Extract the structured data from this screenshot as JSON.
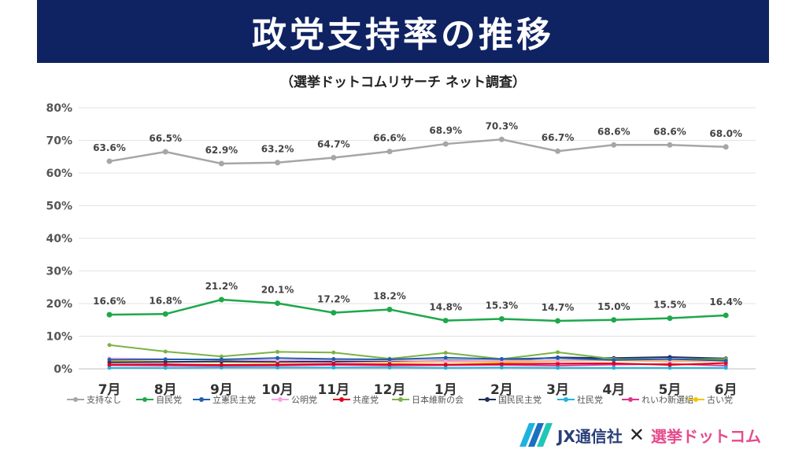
{
  "header": {
    "title": "政党支持率の推移"
  },
  "subtitle": "（選挙ドットコムリサーチ ネット調査）",
  "logo": {
    "jx": "JX通信社",
    "cross": "✕",
    "senkyo": "選挙ドットコム"
  },
  "chart_data": {
    "type": "line",
    "categories": [
      "7月",
      "8月",
      "9月",
      "10月",
      "11月",
      "12月",
      "1月",
      "2月",
      "3月",
      "4月",
      "5月",
      "6月"
    ],
    "ylim": [
      0,
      80
    ],
    "yticks": [
      "0%",
      "10%",
      "20%",
      "30%",
      "40%",
      "50%",
      "60%",
      "70%",
      "80%"
    ],
    "grid": true,
    "legend_position": "bottom",
    "series": [
      {
        "name": "支持なし",
        "color": "#a6a6a6",
        "values": [
          63.6,
          66.5,
          62.9,
          63.2,
          64.7,
          66.6,
          68.9,
          70.3,
          66.7,
          68.6,
          68.6,
          68.0
        ],
        "labels": [
          "63.6%",
          "66.5%",
          "62.9%",
          "63.2%",
          "64.7%",
          "66.6%",
          "68.9%",
          "70.3%",
          "66.7%",
          "68.6%",
          "68.6%",
          "68.0%"
        ]
      },
      {
        "name": "自民党",
        "color": "#1ea84b",
        "values": [
          16.6,
          16.8,
          21.2,
          20.1,
          17.2,
          18.2,
          14.8,
          15.3,
          14.7,
          15.0,
          15.5,
          16.4
        ],
        "labels": [
          "16.6%",
          "16.8%",
          "21.2%",
          "20.1%",
          "17.2%",
          "18.2%",
          "14.8%",
          "15.3%",
          "14.7%",
          "15.0%",
          "15.5%",
          "16.4%"
        ]
      },
      {
        "name": "立憲民主党",
        "color": "#1f5fad",
        "values": [
          2.8,
          2.9,
          2.9,
          3.3,
          3.0,
          2.9,
          3.4,
          3.0,
          3.3,
          2.7,
          3.0,
          2.5
        ]
      },
      {
        "name": "公明党",
        "color": "#f5a3e6",
        "values": [
          3.2,
          3.0,
          2.8,
          2.6,
          2.7,
          2.6,
          2.4,
          2.5,
          2.6,
          2.7,
          2.6,
          2.5
        ]
      },
      {
        "name": "共産党",
        "color": "#e0001a",
        "values": [
          1.3,
          1.4,
          1.2,
          1.3,
          1.5,
          1.4,
          1.3,
          1.5,
          1.6,
          1.7,
          1.2,
          1.8
        ]
      },
      {
        "name": "日本維新の会",
        "color": "#7cb246",
        "values": [
          7.3,
          5.3,
          3.8,
          5.2,
          5.0,
          3.1,
          4.9,
          3.0,
          5.1,
          3.0,
          2.9,
          3.0
        ]
      },
      {
        "name": "国民民主党",
        "color": "#1f2d5a",
        "values": [
          2.0,
          2.1,
          2.3,
          2.2,
          2.2,
          2.4,
          2.6,
          2.5,
          3.5,
          3.3,
          3.6,
          3.2
        ]
      },
      {
        "name": "社民党",
        "color": "#1fb2e0",
        "values": [
          0.3,
          0.3,
          0.4,
          0.4,
          0.4,
          0.4,
          0.3,
          0.4,
          0.3,
          0.3,
          0.3,
          0.3
        ]
      },
      {
        "name": "れいわ新選組",
        "color": "#e0338b",
        "values": [
          1.1,
          1.0,
          0.9,
          1.0,
          1.2,
          1.0,
          1.1,
          1.2,
          1.0,
          1.3,
          1.5,
          1.0
        ]
      },
      {
        "name": "古い党",
        "color": "#f5c400",
        "values": [
          2.3,
          2.2,
          2.1,
          2.0,
          2.3,
          2.1,
          2.2,
          2.0,
          2.4,
          2.6,
          2.3,
          2.4
        ]
      }
    ]
  }
}
